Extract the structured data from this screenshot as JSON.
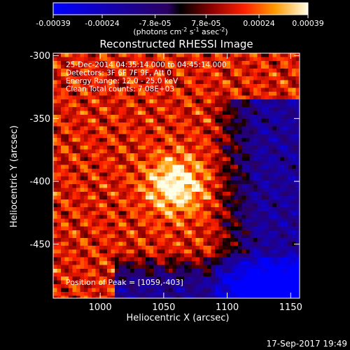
{
  "chart_data": {
    "type": "heatmap",
    "title": "Reconstructed RHESSI Image",
    "xlabel": "Heliocentric X (arcsec)",
    "ylabel": "Heliocentric Y (arcsec)",
    "xlim": [
      963,
      1157
    ],
    "ylim": [
      -493,
      -298
    ],
    "x_ticks": [
      1000,
      1050,
      1100,
      1150
    ],
    "y_ticks": [
      -300,
      -350,
      -400,
      -450
    ],
    "colorbar": {
      "range": [
        -0.00039,
        0.00039
      ],
      "tick_values": [
        -0.00039,
        -0.00024,
        -7.8e-05,
        7.8e-05,
        0.00024,
        0.00039
      ],
      "tick_labels": [
        "-0.00039",
        "-0.00024",
        "-7.8e-05",
        "7.8e-05",
        "0.00024",
        "0.00039"
      ],
      "unit_main": "(photons cm",
      "unit_exp1": "-2",
      "unit_mid": " s",
      "unit_exp2": "-1",
      "unit_end": " asec",
      "unit_exp3": "-2",
      "unit_close": ")"
    },
    "info_lines": [
      "25-Dec-2014 04:35:14.000 to 04:45:14.000",
      "Detectors: 3F 6F 7F 9F, Att 0",
      "Energy Range: 12.0 - 25.0 keV",
      "Clean     Total counts: 7.08E+03"
    ],
    "peak_label": "Position of Peak = [1059,-403]",
    "peak_position": [
      1059,
      -403
    ],
    "colors": {
      "min": "#0000ff",
      "neutral": "#000000",
      "max": "#ffffe8"
    }
  },
  "footer": {
    "timestamp": "17-Sep-2017 19:49"
  }
}
